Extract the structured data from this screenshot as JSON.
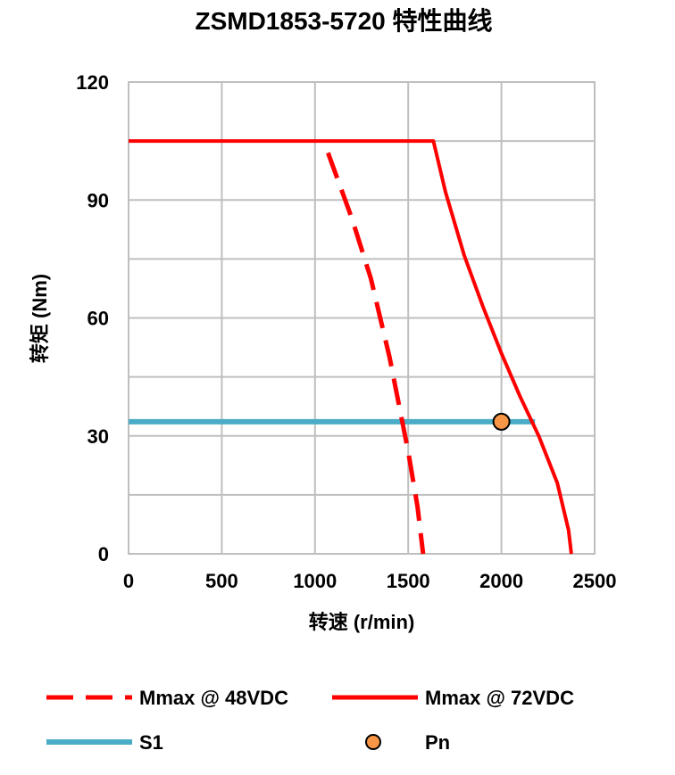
{
  "chart_data": {
    "type": "line",
    "title": "ZSMD1853-5720 特性曲线",
    "xlabel": "转速 (r/min)",
    "ylabel": "转矩 (Nm)",
    "xlim": [
      0,
      2500
    ],
    "ylim": [
      0,
      120
    ],
    "x_ticks": [
      "0",
      "500",
      "1000",
      "1500",
      "2000",
      "2500"
    ],
    "y_ticks": [
      "0",
      "30",
      "60",
      "90",
      "120"
    ],
    "y_minor_gridlines": [
      15,
      45,
      75,
      105
    ],
    "grid": true,
    "legend_position": "bottom",
    "series": [
      {
        "name": "Mmax @ 48VDC",
        "style": "dashed",
        "color": "#ff0000",
        "points": [
          [
            1070,
            102
          ],
          [
            1200,
            85
          ],
          [
            1300,
            70
          ],
          [
            1400,
            50
          ],
          [
            1500,
            26
          ],
          [
            1550,
            12
          ],
          [
            1580,
            0
          ]
        ]
      },
      {
        "name": "Mmax @ 72VDC",
        "style": "solid",
        "color": "#ff0000",
        "points": [
          [
            0,
            105
          ],
          [
            1635,
            105
          ],
          [
            1700,
            92
          ],
          [
            1800,
            76
          ],
          [
            1900,
            63
          ],
          [
            2000,
            51
          ],
          [
            2100,
            40
          ],
          [
            2200,
            30
          ],
          [
            2300,
            18
          ],
          [
            2360,
            6
          ],
          [
            2375,
            0
          ]
        ]
      },
      {
        "name": "S1",
        "style": "solid",
        "color": "#4aacc6",
        "points": [
          [
            0,
            33.6
          ],
          [
            2180,
            33.6
          ]
        ]
      },
      {
        "name": "Pn",
        "style": "marker",
        "color": "#f79646",
        "points": [
          [
            2000,
            33.6
          ]
        ]
      }
    ]
  }
}
